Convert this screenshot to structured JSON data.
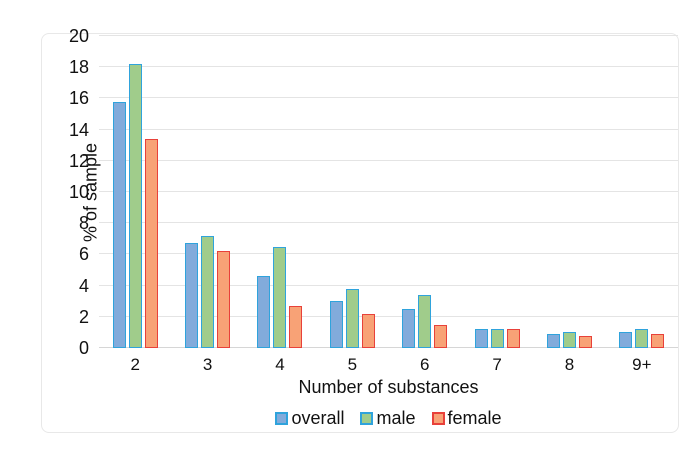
{
  "figure": {
    "background": "#ffffff",
    "card_border": "#e8e8e8",
    "gridline_color": "#e4e4e4",
    "text_color": "#111111"
  },
  "chart_data": {
    "type": "bar",
    "title": "",
    "xlabel": "Number of substances",
    "ylabel": "% of sample",
    "categories": [
      "2",
      "3",
      "4",
      "5",
      "6",
      "7",
      "8",
      "9+"
    ],
    "series": [
      {
        "name": "overall",
        "fill": "#82ABDB",
        "border": "#2FA3DC",
        "values": [
          15.8,
          6.7,
          4.6,
          3.0,
          2.5,
          1.2,
          0.9,
          1.0
        ]
      },
      {
        "name": "male",
        "fill": "#A0CC8B",
        "border": "#2FA3DC",
        "values": [
          18.2,
          7.2,
          6.5,
          3.8,
          3.4,
          1.2,
          1.0,
          1.2
        ]
      },
      {
        "name": "female",
        "fill": "#F8A276",
        "border": "#E8413A",
        "values": [
          13.4,
          6.2,
          2.7,
          2.2,
          1.5,
          1.2,
          0.8,
          0.9
        ]
      }
    ],
    "ylim": [
      0,
      20
    ],
    "yticks": [
      0,
      2,
      4,
      6,
      8,
      10,
      12,
      14,
      16,
      18,
      20
    ],
    "grid": true,
    "legend_position": "bottom"
  }
}
